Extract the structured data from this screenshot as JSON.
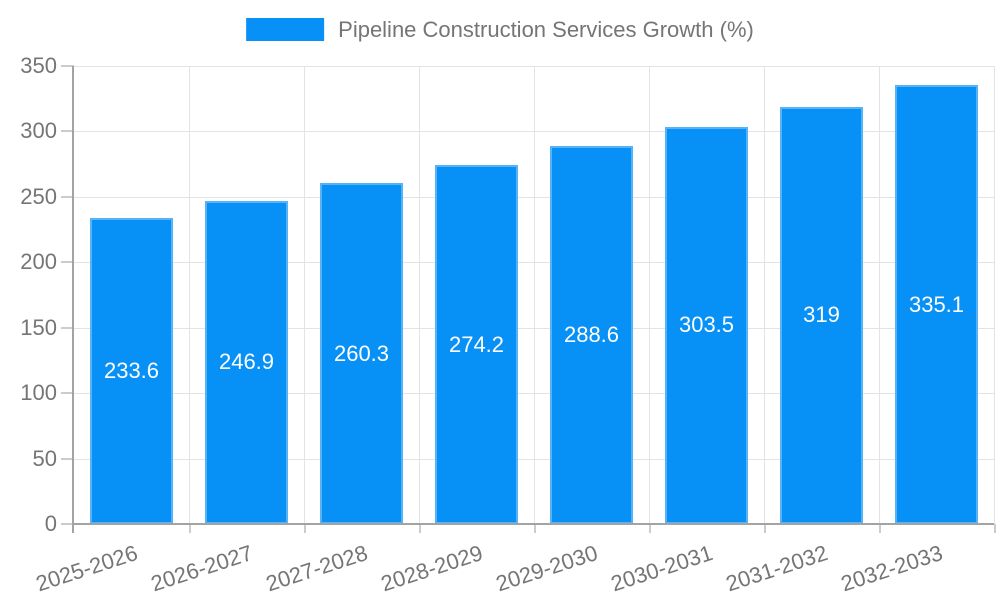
{
  "chart_data": {
    "type": "bar",
    "title": "Pipeline Construction Services Growth (%)",
    "xlabel": "",
    "ylabel": "",
    "categories": [
      "2025-2026",
      "2026-2027",
      "2027-2028",
      "2028-2029",
      "2029-2030",
      "2030-2031",
      "2031-2032",
      "2032-2033"
    ],
    "values": [
      233.6,
      246.9,
      260.3,
      274.2,
      288.6,
      303.5,
      319,
      335.1
    ],
    "value_labels": [
      "233.6",
      "246.9",
      "260.3",
      "274.2",
      "288.6",
      "303.5",
      "319",
      "335.1"
    ],
    "ylim": [
      0,
      350
    ],
    "yticks": [
      0,
      50,
      100,
      150,
      200,
      250,
      300,
      350
    ],
    "legend_position": "top",
    "grid": true,
    "colors": {
      "bar": "#0790f5",
      "grid_line": "#e3e3e3",
      "axis_line": "#a3a3a3",
      "tick_mark": "#cccccc",
      "axis_text": "#757575",
      "value_label": "#ffffff"
    }
  }
}
